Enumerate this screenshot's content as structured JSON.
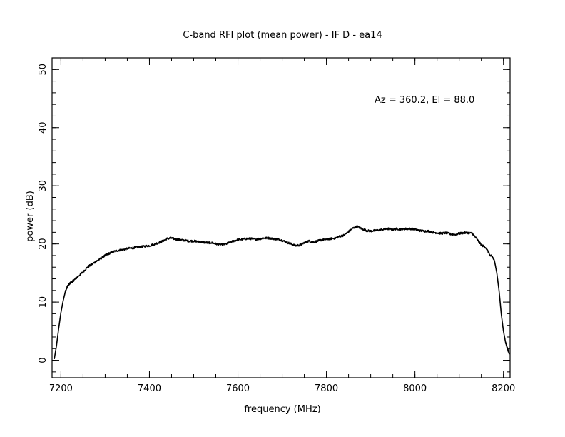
{
  "chart_data": {
    "type": "line",
    "title": "C-band RFI plot (mean power) - IF D - ea14",
    "xlabel": "frequency (MHz)",
    "ylabel": "power (dB)",
    "annotation": "Az = 360.2, El = 88.0",
    "xlim": [
      7180,
      8215
    ],
    "ylim": [
      -3,
      52
    ],
    "x_ticks": [
      7200,
      7400,
      7600,
      7800,
      8000,
      8200
    ],
    "y_ticks": [
      0,
      10,
      20,
      30,
      40,
      50
    ],
    "x_minor_step": 50,
    "y_minor_step": 2,
    "grid": false,
    "line_color": "#000000",
    "series": [
      {
        "x": [
          7185,
          7190,
          7195,
          7200,
          7205,
          7210,
          7215,
          7220,
          7225,
          7230,
          7240,
          7250,
          7260,
          7270,
          7280,
          7290,
          7300,
          7310,
          7320,
          7330,
          7340,
          7350,
          7360,
          7370,
          7380,
          7390,
          7400,
          7410,
          7420,
          7430,
          7440,
          7450,
          7460,
          7470,
          7480,
          7490,
          7500,
          7510,
          7520,
          7530,
          7540,
          7550,
          7560,
          7570,
          7580,
          7590,
          7600,
          7610,
          7620,
          7630,
          7640,
          7650,
          7660,
          7670,
          7680,
          7690,
          7700,
          7710,
          7720,
          7730,
          7740,
          7750,
          7760,
          7770,
          7780,
          7790,
          7800,
          7810,
          7820,
          7830,
          7840,
          7850,
          7860,
          7870,
          7880,
          7890,
          7900,
          7910,
          7920,
          7930,
          7940,
          7950,
          7960,
          7970,
          7980,
          7990,
          8000,
          8010,
          8020,
          8030,
          8040,
          8050,
          8060,
          8070,
          8080,
          8090,
          8100,
          8110,
          8120,
          8130,
          8140,
          8150,
          8160,
          8170,
          8175,
          8180,
          8185,
          8190,
          8195,
          8200,
          8205,
          8210,
          8213
        ],
        "y": [
          0.2,
          2.5,
          5.5,
          8.2,
          10.2,
          11.8,
          12.7,
          13.2,
          13.5,
          13.8,
          14.5,
          15.2,
          16.0,
          16.5,
          17.0,
          17.5,
          18.0,
          18.4,
          18.7,
          18.9,
          19.0,
          19.2,
          19.3,
          19.4,
          19.5,
          19.6,
          19.7,
          19.9,
          20.2,
          20.5,
          20.9,
          21.0,
          20.8,
          20.7,
          20.6,
          20.5,
          20.5,
          20.4,
          20.3,
          20.2,
          20.2,
          20.0,
          19.9,
          19.9,
          20.2,
          20.5,
          20.7,
          20.8,
          20.9,
          20.9,
          20.8,
          20.9,
          21.0,
          21.0,
          20.9,
          20.8,
          20.6,
          20.3,
          20.0,
          19.7,
          19.8,
          20.2,
          20.5,
          20.3,
          20.5,
          20.7,
          20.8,
          20.9,
          21.0,
          21.3,
          21.5,
          22.1,
          22.7,
          23.0,
          22.6,
          22.3,
          22.2,
          22.3,
          22.4,
          22.5,
          22.6,
          22.5,
          22.6,
          22.5,
          22.6,
          22.6,
          22.5,
          22.3,
          22.2,
          22.2,
          22.0,
          21.9,
          21.8,
          21.9,
          21.7,
          21.6,
          21.8,
          21.9,
          21.9,
          21.8,
          20.8,
          19.8,
          19.4,
          18.0,
          17.8,
          17.0,
          15.0,
          12.0,
          8.0,
          5.0,
          3.0,
          1.8,
          1.2
        ]
      }
    ]
  }
}
